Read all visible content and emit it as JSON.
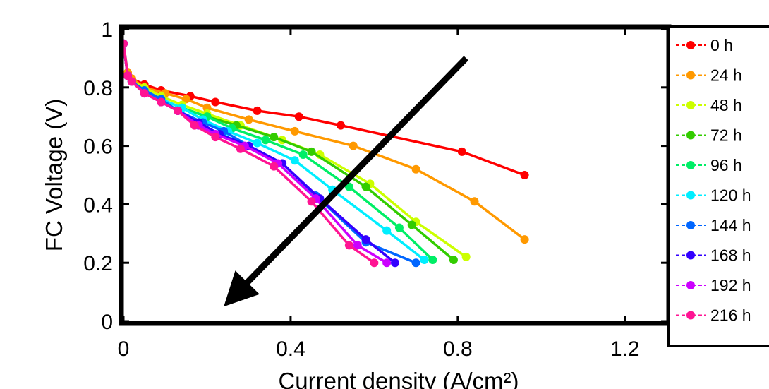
{
  "chart_data": {
    "type": "line",
    "title": "",
    "xlabel": "Current density (A/cm²)",
    "ylabel": "FC Voltage (V)",
    "xlim": [
      0,
      1.3
    ],
    "ylim": [
      0,
      1
    ],
    "x_ticks": [
      {
        "value": 0,
        "label": "0"
      },
      {
        "value": 0.4,
        "label": "0.4"
      },
      {
        "value": 0.8,
        "label": "0.8"
      },
      {
        "value": 1.2,
        "label": "1.2"
      }
    ],
    "y_ticks": [
      {
        "value": 0,
        "label": "0"
      },
      {
        "value": 0.2,
        "label": "0.2"
      },
      {
        "value": 0.4,
        "label": "0.4"
      },
      {
        "value": 0.6,
        "label": "0.6"
      },
      {
        "value": 0.8,
        "label": "0.8"
      },
      {
        "value": 1,
        "label": "1"
      }
    ],
    "grid": false,
    "legend_placement": "right",
    "series": [
      {
        "name": "0 h",
        "color": "#ff0000",
        "x": [
          0,
          0.01,
          0.02,
          0.05,
          0.09,
          0.16,
          0.22,
          0.32,
          0.42,
          0.52,
          0.81,
          0.96
        ],
        "y": [
          0.95,
          0.85,
          0.83,
          0.81,
          0.79,
          0.77,
          0.75,
          0.72,
          0.7,
          0.67,
          0.58,
          0.5
        ]
      },
      {
        "name": "24 h",
        "color": "#ff9900",
        "x": [
          0,
          0.01,
          0.02,
          0.05,
          0.1,
          0.15,
          0.2,
          0.3,
          0.41,
          0.55,
          0.7,
          0.84,
          0.96
        ],
        "y": [
          0.95,
          0.85,
          0.83,
          0.8,
          0.78,
          0.76,
          0.73,
          0.69,
          0.65,
          0.6,
          0.52,
          0.41,
          0.28
        ]
      },
      {
        "name": "48 h",
        "color": "#ccff00",
        "x": [
          0,
          0.01,
          0.02,
          0.05,
          0.09,
          0.14,
          0.2,
          0.28,
          0.38,
          0.47,
          0.59,
          0.7,
          0.82
        ],
        "y": [
          0.95,
          0.84,
          0.82,
          0.8,
          0.77,
          0.74,
          0.71,
          0.67,
          0.62,
          0.57,
          0.47,
          0.34,
          0.22
        ]
      },
      {
        "name": "72 h",
        "color": "#33cc00",
        "x": [
          0,
          0.01,
          0.02,
          0.05,
          0.09,
          0.14,
          0.2,
          0.27,
          0.36,
          0.45,
          0.58,
          0.69,
          0.79
        ],
        "y": [
          0.95,
          0.84,
          0.82,
          0.79,
          0.76,
          0.73,
          0.7,
          0.67,
          0.63,
          0.58,
          0.46,
          0.33,
          0.21
        ]
      },
      {
        "name": "96 h",
        "color": "#00ee66",
        "x": [
          0,
          0.01,
          0.02,
          0.05,
          0.09,
          0.14,
          0.2,
          0.26,
          0.34,
          0.43,
          0.54,
          0.66,
          0.74
        ],
        "y": [
          0.95,
          0.84,
          0.82,
          0.79,
          0.76,
          0.73,
          0.7,
          0.66,
          0.62,
          0.57,
          0.46,
          0.32,
          0.21
        ]
      },
      {
        "name": "120 h",
        "color": "#00eeff",
        "x": [
          0,
          0.01,
          0.02,
          0.05,
          0.09,
          0.14,
          0.19,
          0.25,
          0.32,
          0.41,
          0.5,
          0.63,
          0.72
        ],
        "y": [
          0.95,
          0.84,
          0.82,
          0.79,
          0.76,
          0.73,
          0.69,
          0.65,
          0.61,
          0.55,
          0.45,
          0.31,
          0.21
        ]
      },
      {
        "name": "144 h",
        "color": "#0066ff",
        "x": [
          0,
          0.01,
          0.02,
          0.05,
          0.09,
          0.13,
          0.19,
          0.24,
          0.3,
          0.38,
          0.46,
          0.58,
          0.7
        ],
        "y": [
          0.95,
          0.84,
          0.82,
          0.79,
          0.76,
          0.72,
          0.68,
          0.65,
          0.6,
          0.54,
          0.43,
          0.27,
          0.2
        ]
      },
      {
        "name": "168 h",
        "color": "#3300ff",
        "x": [
          0,
          0.01,
          0.02,
          0.05,
          0.09,
          0.13,
          0.18,
          0.23,
          0.3,
          0.38,
          0.47,
          0.58,
          0.65
        ],
        "y": [
          0.95,
          0.84,
          0.82,
          0.78,
          0.75,
          0.72,
          0.68,
          0.64,
          0.6,
          0.54,
          0.42,
          0.28,
          0.2
        ]
      },
      {
        "name": "192 h",
        "color": "#cc00ff",
        "x": [
          0,
          0.01,
          0.02,
          0.05,
          0.09,
          0.13,
          0.18,
          0.22,
          0.29,
          0.37,
          0.46,
          0.56,
          0.63
        ],
        "y": [
          0.95,
          0.84,
          0.82,
          0.78,
          0.75,
          0.72,
          0.67,
          0.64,
          0.6,
          0.54,
          0.42,
          0.26,
          0.2
        ]
      },
      {
        "name": "216 h",
        "color": "#ff1493",
        "x": [
          0,
          0.01,
          0.02,
          0.05,
          0.09,
          0.13,
          0.17,
          0.22,
          0.28,
          0.36,
          0.45,
          0.54,
          0.6
        ],
        "y": [
          0.95,
          0.84,
          0.82,
          0.78,
          0.75,
          0.72,
          0.67,
          0.63,
          0.59,
          0.53,
          0.41,
          0.26,
          0.2
        ]
      }
    ],
    "annotation_arrow": {
      "from": [
        0.82,
        0.9
      ],
      "to": [
        0.24,
        0.05
      ],
      "color": "#000000"
    }
  }
}
